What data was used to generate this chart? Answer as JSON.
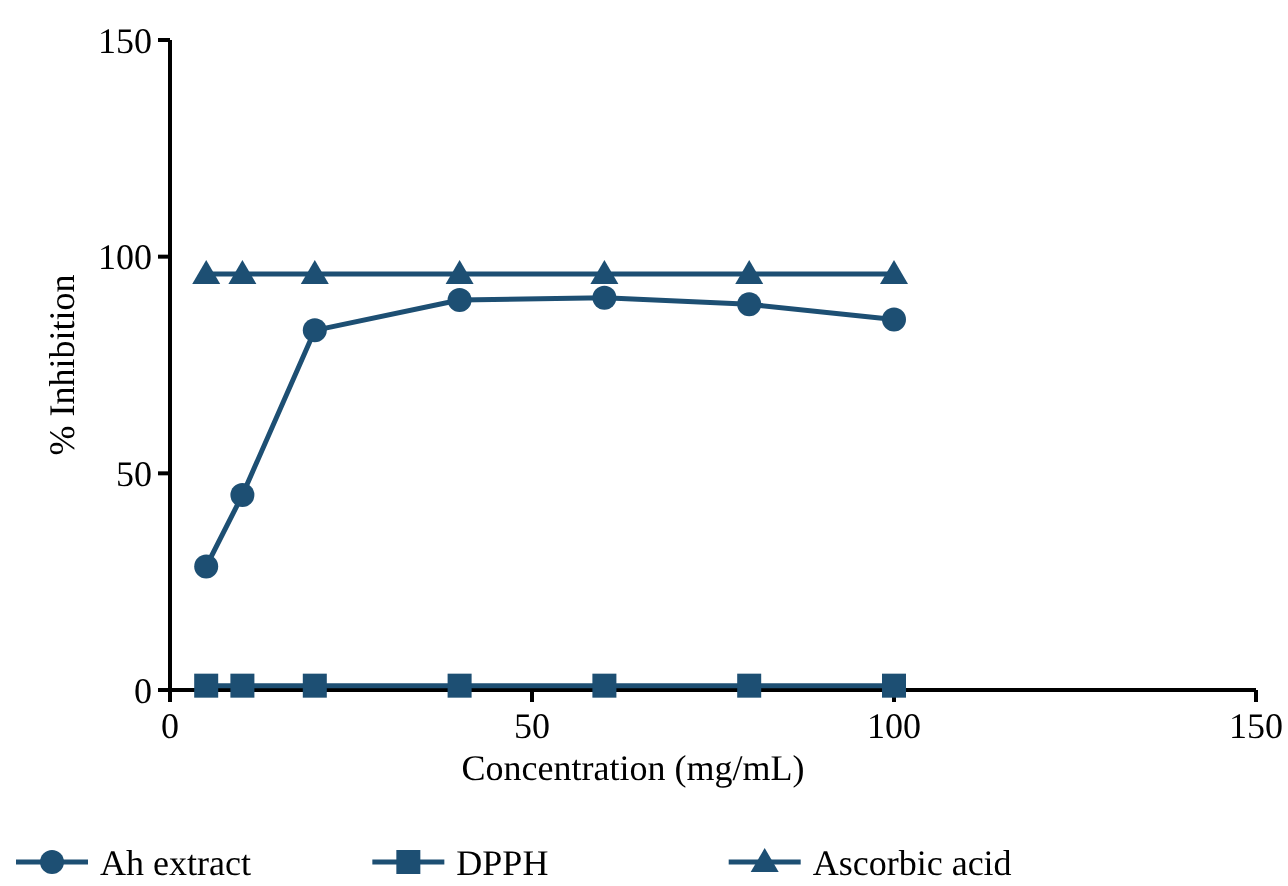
{
  "chart_data": {
    "type": "line",
    "xlabel": "Concentration (mg/mL)",
    "ylabel": "% Inhibition",
    "xlim": [
      0,
      150
    ],
    "ylim": [
      0,
      150
    ],
    "xticks": [
      0,
      50,
      100,
      150
    ],
    "yticks": [
      0,
      50,
      100,
      150
    ],
    "legend": "bottom",
    "x": [
      5,
      10,
      20,
      40,
      60,
      80,
      100
    ],
    "series": [
      {
        "name": "Ah extract",
        "color": "#1d4f73",
        "marker": "circle",
        "values": [
          28.5,
          45,
          83,
          90,
          90.5,
          89,
          85.5
        ]
      },
      {
        "name": "DPPH",
        "color": "#1d4f73",
        "marker": "square",
        "values": [
          1,
          1,
          1,
          1,
          1,
          1,
          1
        ]
      },
      {
        "name": "Ascorbic acid",
        "color": "#1d4f73",
        "marker": "triangle",
        "values": [
          96,
          96,
          96,
          96,
          96,
          96,
          96
        ]
      }
    ]
  }
}
